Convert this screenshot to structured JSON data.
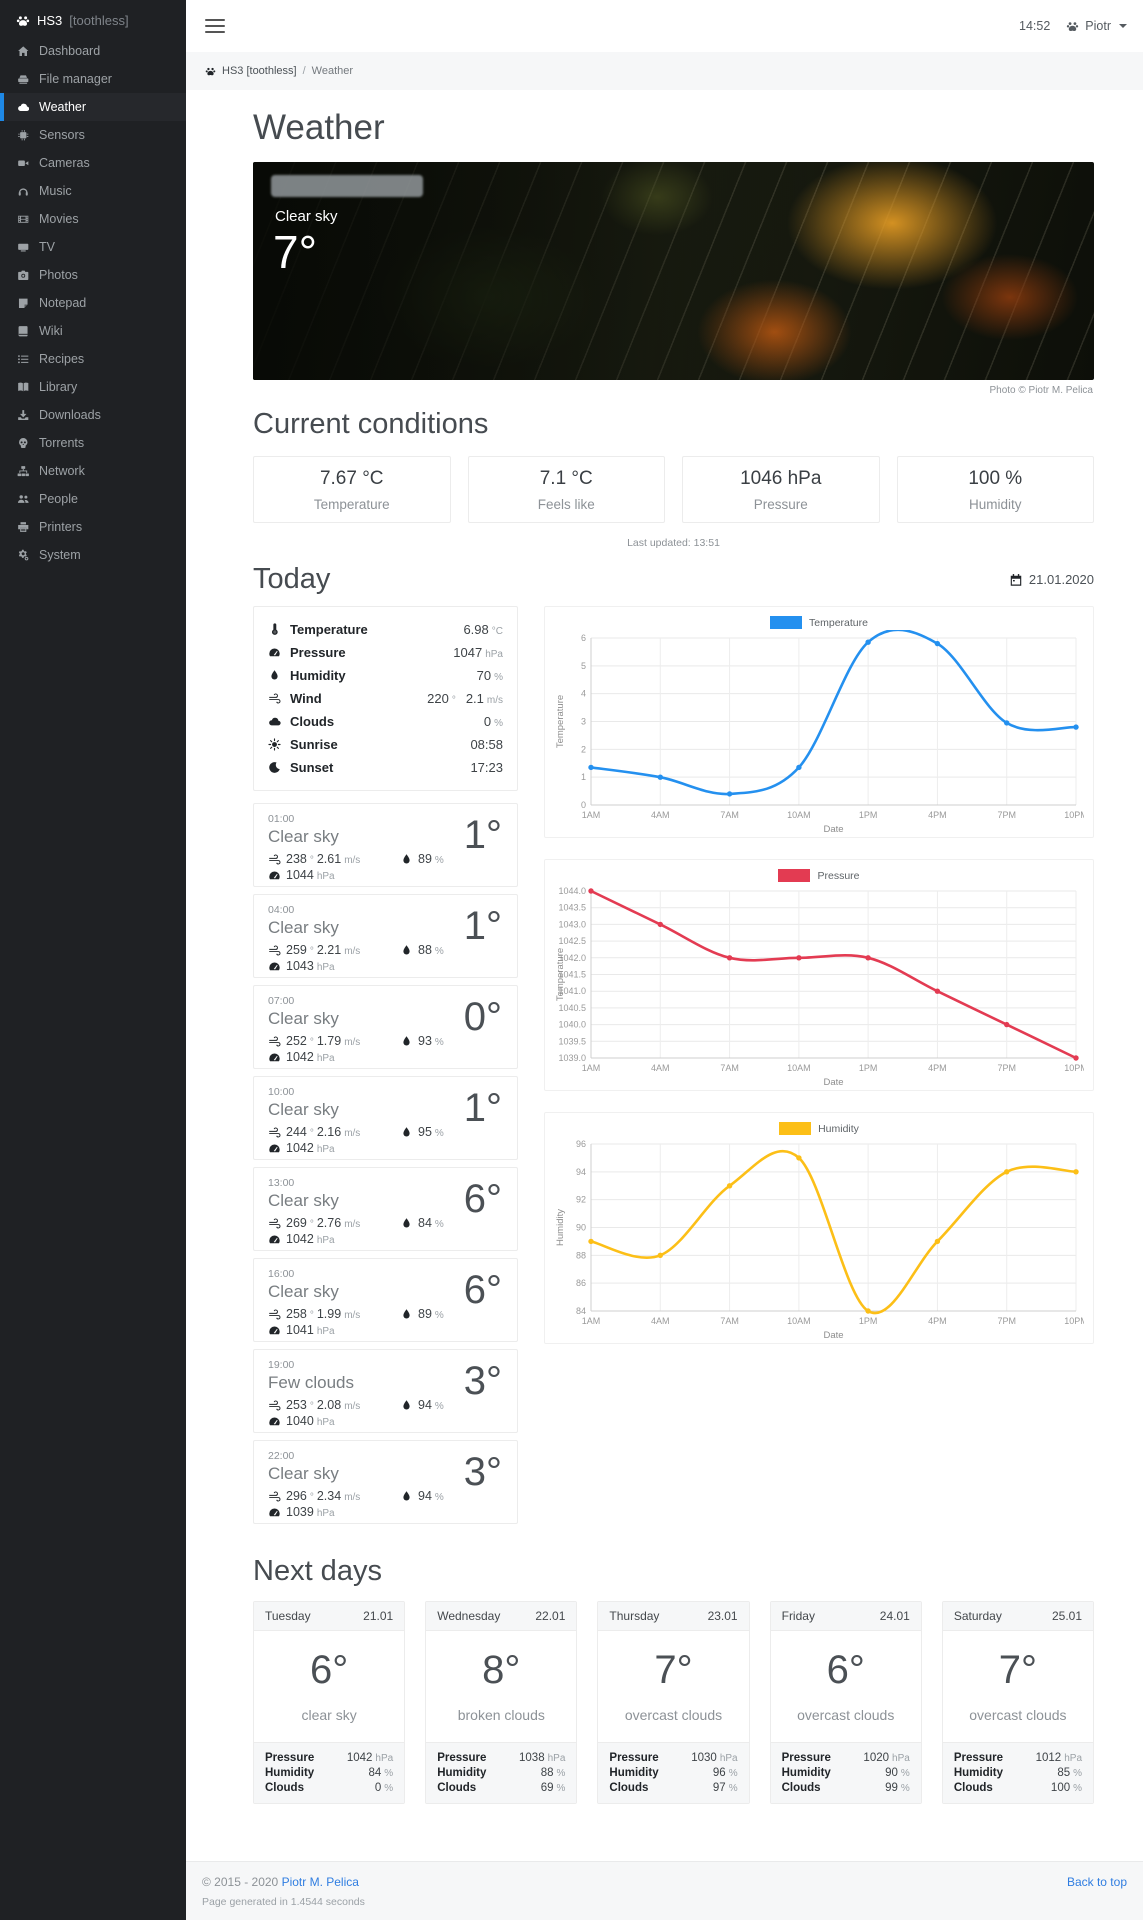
{
  "colors": {
    "accent": "#1e88e5",
    "link": "#2f7de1",
    "sidebar_bg": "#1f2124"
  },
  "sidebar": {
    "brand": "HS3",
    "brand_suffix": "[toothless]",
    "items": [
      {
        "label": "Dashboard",
        "icon": "home",
        "active": false
      },
      {
        "label": "File manager",
        "icon": "hdd",
        "active": false
      },
      {
        "label": "Weather",
        "icon": "cloud",
        "active": true
      },
      {
        "label": "Sensors",
        "icon": "chip",
        "active": false
      },
      {
        "label": "Cameras",
        "icon": "video",
        "active": false
      },
      {
        "label": "Music",
        "icon": "headphones",
        "active": false
      },
      {
        "label": "Movies",
        "icon": "film",
        "active": false
      },
      {
        "label": "TV",
        "icon": "tv",
        "active": false
      },
      {
        "label": "Photos",
        "icon": "camera",
        "active": false
      },
      {
        "label": "Notepad",
        "icon": "note",
        "active": false
      },
      {
        "label": "Wiki",
        "icon": "book",
        "active": false
      },
      {
        "label": "Recipes",
        "icon": "list",
        "active": false
      },
      {
        "label": "Library",
        "icon": "bookopen",
        "active": false
      },
      {
        "label": "Downloads",
        "icon": "download",
        "active": false
      },
      {
        "label": "Torrents",
        "icon": "skull",
        "active": false
      },
      {
        "label": "Network",
        "icon": "sitemap",
        "active": false
      },
      {
        "label": "People",
        "icon": "users",
        "active": false
      },
      {
        "label": "Printers",
        "icon": "print",
        "active": false
      },
      {
        "label": "System",
        "icon": "cogs",
        "active": false
      }
    ]
  },
  "topbar": {
    "time": "14:52",
    "user": "Piotr"
  },
  "breadcrumb": {
    "root": "HS3 [toothless]",
    "separator": "/",
    "current": "Weather"
  },
  "page": {
    "title": "Weather"
  },
  "hero": {
    "condition": "Clear sky",
    "temperature": "7°",
    "credit": "Photo © Piotr M. Pelica"
  },
  "current": {
    "title": "Current conditions",
    "cards": [
      {
        "value": "7.67 °C",
        "label": "Temperature"
      },
      {
        "value": "7.1 °C",
        "label": "Feels like"
      },
      {
        "value": "1046 hPa",
        "label": "Pressure"
      },
      {
        "value": "100 %",
        "label": "Humidity"
      }
    ],
    "last_updated": "Last updated: 13:51"
  },
  "today": {
    "title": "Today",
    "date": "21.01.2020",
    "details": [
      {
        "icon": "thermo",
        "label": "Temperature",
        "parts": [
          [
            "6.98",
            "°C"
          ]
        ]
      },
      {
        "icon": "gauge",
        "label": "Pressure",
        "parts": [
          [
            "1047",
            "hPa"
          ]
        ]
      },
      {
        "icon": "droplet",
        "label": "Humidity",
        "parts": [
          [
            "70",
            "%"
          ]
        ]
      },
      {
        "icon": "wind",
        "label": "Wind",
        "parts": [
          [
            "220",
            "°"
          ],
          [
            "2.1",
            "m/s"
          ]
        ]
      },
      {
        "icon": "cloud",
        "label": "Clouds",
        "parts": [
          [
            "0",
            "%"
          ]
        ]
      },
      {
        "icon": "sun",
        "label": "Sunrise",
        "parts": [
          [
            "08:58",
            ""
          ]
        ]
      },
      {
        "icon": "moon",
        "label": "Sunset",
        "parts": [
          [
            "17:23",
            ""
          ]
        ]
      }
    ],
    "hours": [
      {
        "time": "01:00",
        "condition": "Clear sky",
        "wind_deg": "238",
        "wind_speed": "2.61",
        "humidity": "89",
        "pressure": "1044",
        "temp": "1°"
      },
      {
        "time": "04:00",
        "condition": "Clear sky",
        "wind_deg": "259",
        "wind_speed": "2.21",
        "humidity": "88",
        "pressure": "1043",
        "temp": "1°"
      },
      {
        "time": "07:00",
        "condition": "Clear sky",
        "wind_deg": "252",
        "wind_speed": "1.79",
        "humidity": "93",
        "pressure": "1042",
        "temp": "0°"
      },
      {
        "time": "10:00",
        "condition": "Clear sky",
        "wind_deg": "244",
        "wind_speed": "2.16",
        "humidity": "95",
        "pressure": "1042",
        "temp": "1°"
      },
      {
        "time": "13:00",
        "condition": "Clear sky",
        "wind_deg": "269",
        "wind_speed": "2.76",
        "humidity": "84",
        "pressure": "1042",
        "temp": "6°"
      },
      {
        "time": "16:00",
        "condition": "Clear sky",
        "wind_deg": "258",
        "wind_speed": "1.99",
        "humidity": "89",
        "pressure": "1041",
        "temp": "6°"
      },
      {
        "time": "19:00",
        "condition": "Few clouds",
        "wind_deg": "253",
        "wind_speed": "2.08",
        "humidity": "94",
        "pressure": "1040",
        "temp": "3°"
      },
      {
        "time": "22:00",
        "condition": "Clear sky",
        "wind_deg": "296",
        "wind_speed": "2.34",
        "humidity": "94",
        "pressure": "1039",
        "temp": "3°"
      }
    ]
  },
  "units": {
    "deg": "°",
    "speed": "m/s",
    "percent": "%",
    "pressure": "hPa"
  },
  "chart_data": [
    {
      "type": "line",
      "name": "temperature",
      "legend": "Temperature",
      "color": "#2490ef",
      "categories": [
        "1AM",
        "4AM",
        "7AM",
        "10AM",
        "1PM",
        "4PM",
        "7PM",
        "10PM"
      ],
      "values": [
        1.35,
        1.0,
        0.4,
        1.35,
        5.85,
        5.8,
        2.95,
        2.8
      ],
      "ymin": 0,
      "ymax": 6,
      "ystep": 1,
      "decimals": 0,
      "ylabel": "Temperature",
      "xlabel": "Date",
      "grid": true,
      "legend_position": "top"
    },
    {
      "type": "line",
      "name": "pressure",
      "legend": "Pressure",
      "color": "#e33b52",
      "categories": [
        "1AM",
        "4AM",
        "7AM",
        "10AM",
        "1PM",
        "4PM",
        "7PM",
        "10PM"
      ],
      "values": [
        1044,
        1043,
        1042,
        1042,
        1042,
        1041,
        1040,
        1039
      ],
      "ymin": 1039,
      "ymax": 1044,
      "ystep": 0.5,
      "decimals": 1,
      "ylabel": "Temperature",
      "xlabel": "Date",
      "grid": true,
      "legend_position": "top"
    },
    {
      "type": "line",
      "name": "humidity",
      "legend": "Humidity",
      "color": "#fcbf17",
      "categories": [
        "1AM",
        "4AM",
        "7AM",
        "10AM",
        "1PM",
        "4PM",
        "7PM",
        "10PM"
      ],
      "values": [
        89,
        88,
        93,
        95,
        84,
        89,
        94,
        94
      ],
      "ymin": 84,
      "ymax": 96,
      "ystep": 2,
      "decimals": 0,
      "ylabel": "Humidity",
      "xlabel": "Date",
      "grid": true,
      "legend_position": "top"
    }
  ],
  "next_days": {
    "title": "Next days",
    "days": [
      {
        "day": "Tuesday",
        "date": "21.01",
        "temp": "6°",
        "condition": "clear sky",
        "stats": [
          [
            "Pressure",
            "1042",
            "hPa"
          ],
          [
            "Humidity",
            "84",
            "%"
          ],
          [
            "Clouds",
            "0",
            "%"
          ]
        ]
      },
      {
        "day": "Wednesday",
        "date": "22.01",
        "temp": "8°",
        "condition": "broken clouds",
        "stats": [
          [
            "Pressure",
            "1038",
            "hPa"
          ],
          [
            "Humidity",
            "88",
            "%"
          ],
          [
            "Clouds",
            "69",
            "%"
          ]
        ]
      },
      {
        "day": "Thursday",
        "date": "23.01",
        "temp": "7°",
        "condition": "overcast clouds",
        "stats": [
          [
            "Pressure",
            "1030",
            "hPa"
          ],
          [
            "Humidity",
            "96",
            "%"
          ],
          [
            "Clouds",
            "97",
            "%"
          ]
        ]
      },
      {
        "day": "Friday",
        "date": "24.01",
        "temp": "6°",
        "condition": "overcast clouds",
        "stats": [
          [
            "Pressure",
            "1020",
            "hPa"
          ],
          [
            "Humidity",
            "90",
            "%"
          ],
          [
            "Clouds",
            "99",
            "%"
          ]
        ]
      },
      {
        "day": "Saturday",
        "date": "25.01",
        "temp": "7°",
        "condition": "overcast clouds",
        "stats": [
          [
            "Pressure",
            "1012",
            "hPa"
          ],
          [
            "Humidity",
            "85",
            "%"
          ],
          [
            "Clouds",
            "100",
            "%"
          ]
        ]
      }
    ]
  },
  "footer": {
    "copyright": "© 2015 - 2020",
    "author": "Piotr M. Pelica",
    "generated": "Page generated in 1.4544 seconds",
    "back_to_top": "Back to top"
  }
}
